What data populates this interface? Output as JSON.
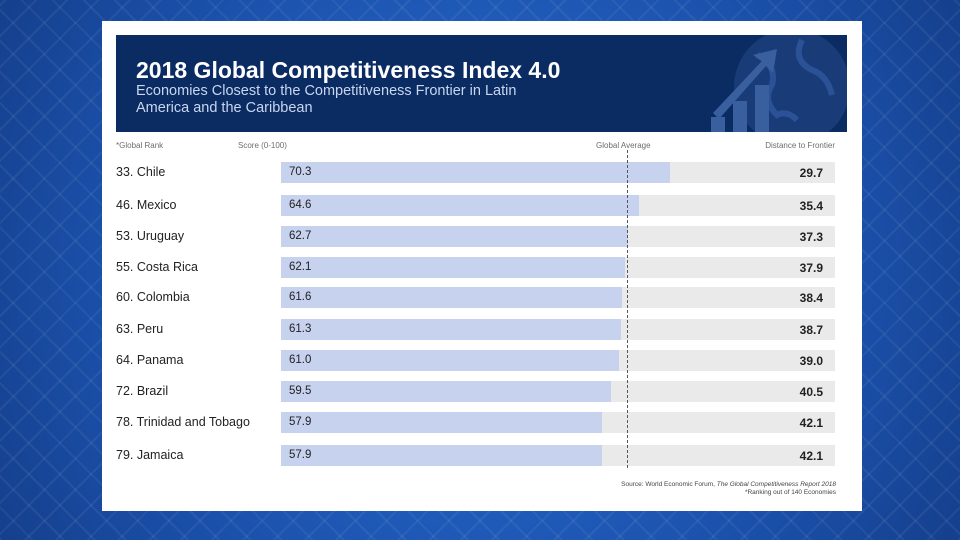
{
  "header": {
    "title": "2018 Global Competitiveness Index 4.0",
    "subtitle": "Economies Closest to the Competitiveness Frontier in Latin America and the Caribbean"
  },
  "columns": {
    "rank": "*Global Rank",
    "score": "Score (0-100)",
    "average": "Global Average",
    "distance": "Distance to Frontier"
  },
  "chart_data": {
    "type": "bar",
    "title": "2018 Global Competitiveness Index 4.0",
    "subtitle": "Economies Closest to the Competitiveness Frontier in Latin America and the Caribbean",
    "xlim": [
      0,
      100
    ],
    "global_average_label": "Global Average",
    "categories": [
      "33. Chile",
      "46. Mexico",
      "53. Uruguay",
      "55. Costa Rica",
      "60. Colombia",
      "63. Peru",
      "64. Panama",
      "72. Brazil",
      "78. Trinidad and Tobago",
      "79. Jamaica"
    ],
    "series": [
      {
        "name": "Score (0-100)",
        "values": [
          70.3,
          64.6,
          62.7,
          62.1,
          61.6,
          61.3,
          61.0,
          59.5,
          57.9,
          57.9
        ]
      },
      {
        "name": "Distance to Frontier",
        "values": [
          29.7,
          35.4,
          37.3,
          37.9,
          38.4,
          38.7,
          39.0,
          40.5,
          42.1,
          42.1
        ]
      }
    ],
    "score_labels": [
      "70.3",
      "64.6",
      "62.7",
      "62.1",
      "61.6",
      "61.3",
      "61.0",
      "59.5",
      "57.9",
      "57.9"
    ],
    "distance_labels": [
      "29.7",
      "35.4",
      "37.3",
      "37.9",
      "38.4",
      "38.7",
      "39.0",
      "40.5",
      "42.1",
      "42.1"
    ],
    "colors": {
      "score": "#c6d2ee",
      "distance": "#eaeaea",
      "banner": "#0b2b63"
    }
  },
  "footer": {
    "source_prefix": "Source:  World Economic Forum, ",
    "source_title": "The Global Competitiveness Report 2018",
    "note": "*Ranking out of 140 Economies"
  }
}
